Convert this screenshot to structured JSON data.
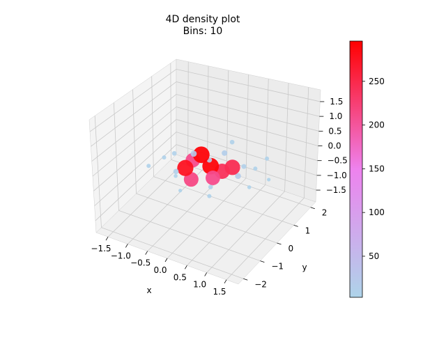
{
  "chart_data": {
    "type": "scatter",
    "title": "4D density plot",
    "subtitle": "Bins: 10",
    "xlabel": "x",
    "ylabel": "y",
    "zlabel": "",
    "x_ticks": [
      -1.5,
      -1.0,
      -0.5,
      0.0,
      0.5,
      1.0,
      1.5
    ],
    "y_ticks": [
      -2,
      -1,
      0,
      1,
      2
    ],
    "z_ticks": [
      -1.5,
      -1.0,
      -0.5,
      0.0,
      0.5,
      1.0,
      1.5
    ],
    "xlim": [
      -1.8,
      1.8
    ],
    "ylim": [
      -2.3,
      2.3
    ],
    "zlim": [
      -1.9,
      1.9
    ],
    "grid": true,
    "colorbar": {
      "min": 3,
      "max": 296,
      "ticks": [
        50,
        100,
        150,
        200,
        250
      ],
      "colors": [
        "#aed4ea",
        "#ee82ee",
        "#ff0000"
      ]
    },
    "points": [
      {
        "x": -0.4,
        "y": -0.9,
        "z": 0.6,
        "v": 8
      },
      {
        "x": -0.1,
        "y": -0.5,
        "z": 0.5,
        "v": 20
      },
      {
        "x": 0.2,
        "y": -0.3,
        "z": 0.3,
        "v": 12
      },
      {
        "x": 0.4,
        "y": 0.1,
        "z": 0.4,
        "v": 15
      },
      {
        "x": 0.5,
        "y": 0.3,
        "z": 0.7,
        "v": 8
      },
      {
        "x": -0.7,
        "y": -0.8,
        "z": 0.3,
        "v": 6
      },
      {
        "x": -1.0,
        "y": -1.0,
        "z": 0.0,
        "v": 6
      },
      {
        "x": -0.5,
        "y": -0.6,
        "z": -0.2,
        "v": 12
      },
      {
        "x": 0.8,
        "y": 0.3,
        "z": 0.0,
        "v": 10
      },
      {
        "x": 1.0,
        "y": 0.5,
        "z": -0.1,
        "v": 6
      },
      {
        "x": 0.7,
        "y": 0.2,
        "z": -0.3,
        "v": 18
      },
      {
        "x": -0.6,
        "y": -0.4,
        "z": -0.5,
        "v": 5
      },
      {
        "x": -0.4,
        "y": -0.6,
        "z": -0.8,
        "v": 4
      },
      {
        "x": 0.2,
        "y": -0.3,
        "z": -0.9,
        "v": 6
      },
      {
        "x": 0.1,
        "y": 0.0,
        "z": -0.8,
        "v": 8
      },
      {
        "x": 0.9,
        "y": 0.4,
        "z": -0.7,
        "v": 5
      },
      {
        "x": 1.3,
        "y": 0.6,
        "z": -0.4,
        "v": 4
      },
      {
        "x": 1.2,
        "y": 0.7,
        "z": 0.2,
        "v": 6
      },
      {
        "x": -0.3,
        "y": -0.1,
        "z": 0.0,
        "v": 210
      },
      {
        "x": 0.2,
        "y": -0.1,
        "z": -0.4,
        "v": 210
      },
      {
        "x": -0.3,
        "y": -0.2,
        "z": -0.6,
        "v": 215
      },
      {
        "x": 0.3,
        "y": 0.2,
        "z": -0.3,
        "v": 240
      },
      {
        "x": 0.6,
        "y": 0.1,
        "z": 0.0,
        "v": 245
      },
      {
        "x": -0.4,
        "y": -0.3,
        "z": -0.2,
        "v": 275
      },
      {
        "x": 0.0,
        "y": -0.3,
        "z": 0.4,
        "v": 290
      },
      {
        "x": 0.1,
        "y": 0.0,
        "z": -0.1,
        "v": 290
      }
    ]
  }
}
